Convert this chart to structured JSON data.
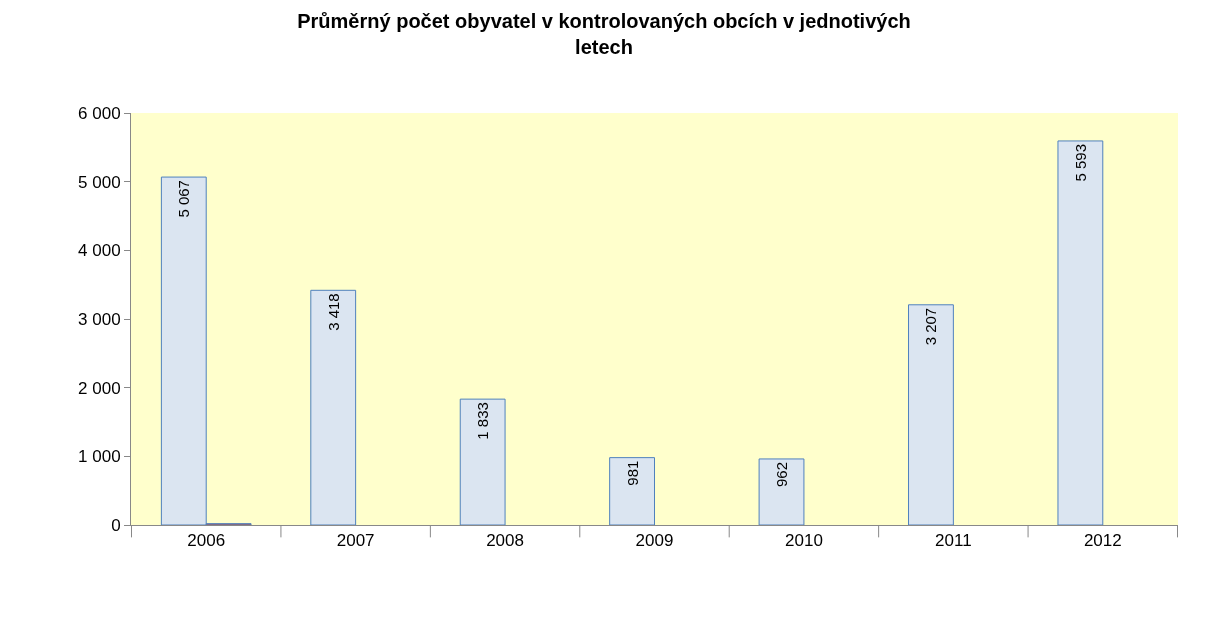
{
  "chart_data": {
    "type": "bar",
    "title": "Průměrný počet obyvatel v kontrolovaných obcích v jednotivých letech",
    "categories": [
      "2006",
      "2007",
      "2008",
      "2009",
      "2010",
      "2011",
      "2012"
    ],
    "series": [
      {
        "color": "#dbe5f1",
        "values": [
          5067,
          3418,
          1833,
          981,
          962,
          3207,
          5593
        ],
        "value_labels": [
          "5 067",
          "3 418",
          "1 833",
          "981",
          "962",
          "3 207",
          "5 593"
        ]
      },
      {
        "color": "#c0504d",
        "values": [
          20,
          null,
          null,
          null,
          null,
          null,
          null
        ]
      }
    ],
    "ylim": [
      0,
      6000
    ],
    "yticks": [
      {
        "value": 0,
        "label": "0"
      },
      {
        "value": 1000,
        "label": "1 000"
      },
      {
        "value": 2000,
        "label": "2 000"
      },
      {
        "value": 3000,
        "label": "3 000"
      },
      {
        "value": 4000,
        "label": "4 000"
      },
      {
        "value": 5000,
        "label": "5 000"
      },
      {
        "value": 6000,
        "label": "6 000"
      }
    ],
    "grid": false
  }
}
